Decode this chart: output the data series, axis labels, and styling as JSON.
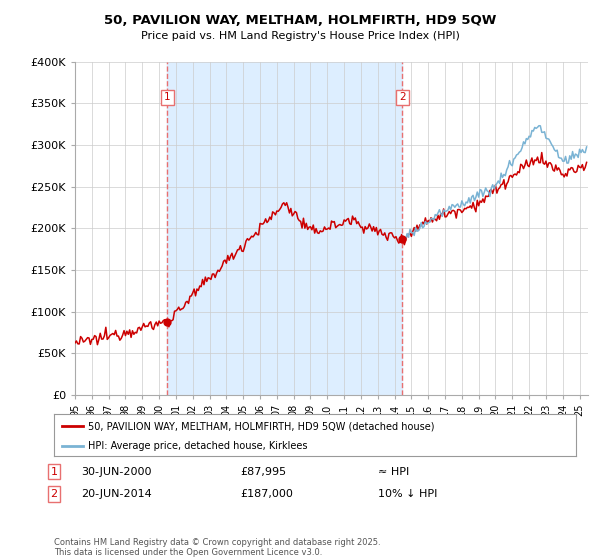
{
  "title": "50, PAVILION WAY, MELTHAM, HOLMFIRTH, HD9 5QW",
  "subtitle": "Price paid vs. HM Land Registry's House Price Index (HPI)",
  "ylim": [
    0,
    400000
  ],
  "yticks": [
    0,
    50000,
    100000,
    150000,
    200000,
    250000,
    300000,
    350000,
    400000
  ],
  "ytick_labels": [
    "£0",
    "£50K",
    "£100K",
    "£150K",
    "£200K",
    "£250K",
    "£300K",
    "£350K",
    "£400K"
  ],
  "xlim_start": 1995.25,
  "xlim_end": 2025.5,
  "vline1_x": 2000.49,
  "vline2_x": 2014.47,
  "transaction1_price": 87995,
  "transaction2_price": 187000,
  "legend_line1": "50, PAVILION WAY, MELTHAM, HOLMFIRTH, HD9 5QW (detached house)",
  "legend_line2": "HPI: Average price, detached house, Kirklees",
  "annotation1": [
    "1",
    "30-JUN-2000",
    "£87,995",
    "≈ HPI"
  ],
  "annotation2": [
    "2",
    "20-JUN-2014",
    "£187,000",
    "10% ↓ HPI"
  ],
  "footnote": "Contains HM Land Registry data © Crown copyright and database right 2025.\nThis data is licensed under the Open Government Licence v3.0.",
  "line_color_red": "#cc0000",
  "line_color_blue": "#7ab3d4",
  "vline_color": "#e87070",
  "shade_color": "#ddeeff",
  "background_color": "#ffffff",
  "grid_color": "#cccccc",
  "label_box_color": "#e87070"
}
